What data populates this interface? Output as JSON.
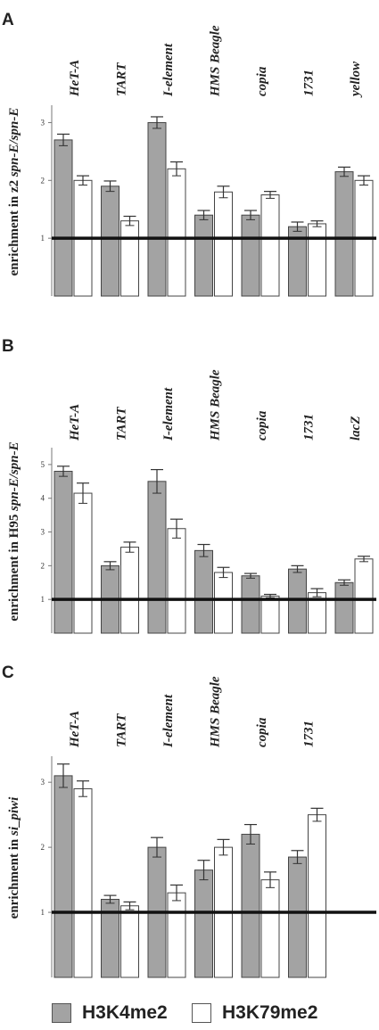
{
  "chart_data": [
    {
      "panel": "A",
      "type": "bar",
      "ylabel_prefix": "enrichment in z2 ",
      "ylabel_italic": "spn-E/spn-E",
      "categories": [
        "HeT-A",
        "TART",
        "I-element",
        "HMS Beagle",
        "copia",
        "1731",
        "yellow"
      ],
      "ylim": [
        0,
        3.3
      ],
      "yticks": [
        1,
        2,
        3
      ],
      "reference_line": 1,
      "series": [
        {
          "name": "H3K4me2",
          "values": [
            2.7,
            1.9,
            3.0,
            1.4,
            1.4,
            1.2,
            2.15
          ],
          "errors": [
            0.1,
            0.09,
            0.1,
            0.08,
            0.08,
            0.08,
            0.08
          ]
        },
        {
          "name": "H3K79me2",
          "values": [
            2.0,
            1.3,
            2.2,
            1.8,
            1.75,
            1.25,
            2.0
          ],
          "errors": [
            0.08,
            0.08,
            0.12,
            0.1,
            0.06,
            0.05,
            0.08
          ]
        }
      ]
    },
    {
      "panel": "B",
      "type": "bar",
      "ylabel_prefix": "enrichment in H95 ",
      "ylabel_italic": "spn-E/spn-E",
      "categories": [
        "HeT-A",
        "TART",
        "I-element",
        "HMS Beagle",
        "copia",
        "1731",
        "lacZ"
      ],
      "ylim": [
        0,
        5.5
      ],
      "yticks": [
        1,
        2,
        3,
        4,
        5
      ],
      "reference_line": 1,
      "series": [
        {
          "name": "H3K4me2",
          "values": [
            4.8,
            2.0,
            4.5,
            2.45,
            1.7,
            1.9,
            1.5
          ],
          "errors": [
            0.15,
            0.12,
            0.35,
            0.18,
            0.07,
            0.1,
            0.08
          ]
        },
        {
          "name": "H3K79me2",
          "values": [
            4.15,
            2.55,
            3.1,
            1.8,
            1.1,
            1.2,
            2.2
          ],
          "errors": [
            0.3,
            0.15,
            0.28,
            0.15,
            0.05,
            0.12,
            0.08
          ]
        }
      ]
    },
    {
      "panel": "C",
      "type": "bar",
      "ylabel_prefix": "enrichment in ",
      "ylabel_italic": "si_piwi",
      "categories": [
        "HeT-A",
        "TART",
        "I-element",
        "HMS Beagle",
        "copia",
        "1731"
      ],
      "ylim": [
        0,
        3.4
      ],
      "yticks": [
        1,
        2,
        3
      ],
      "reference_line": 1,
      "series": [
        {
          "name": "H3K4me2",
          "values": [
            3.1,
            1.2,
            2.0,
            1.65,
            2.2,
            1.85
          ],
          "errors": [
            0.18,
            0.06,
            0.15,
            0.15,
            0.15,
            0.1
          ]
        },
        {
          "name": "H3K79me2",
          "values": [
            2.9,
            1.1,
            1.3,
            2.0,
            1.5,
            2.5
          ],
          "errors": [
            0.12,
            0.06,
            0.12,
            0.12,
            0.12,
            0.1
          ]
        }
      ]
    }
  ],
  "legend": {
    "items": [
      {
        "label": "H3K4me2",
        "color": "#a3a3a3"
      },
      {
        "label": "H3K79me2",
        "color": "#ffffff"
      }
    ]
  }
}
